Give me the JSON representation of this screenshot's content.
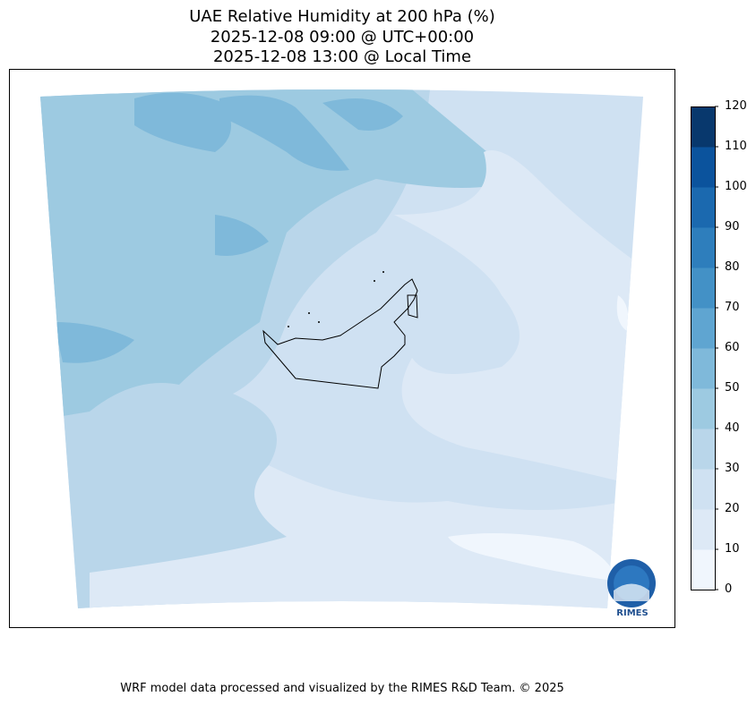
{
  "title_lines": [
    "UAE Relative Humidity at 200 hPa (%)",
    "2025-12-08 09:00 @ UTC+00:00",
    "2025-12-08 13:00 @ Local Time"
  ],
  "chart_data": {
    "type": "contour map",
    "variable": "Relative Humidity at 200 hPa (%)",
    "region": "UAE",
    "colorbar": {
      "levels": [
        0,
        10,
        20,
        30,
        40,
        50,
        60,
        70,
        80,
        90,
        100,
        110,
        120
      ],
      "tick_labels": [
        "0",
        "10",
        "20",
        "30",
        "40",
        "50",
        "60",
        "70",
        "80",
        "90",
        "100",
        "110",
        "120"
      ],
      "colors": [
        "#f0f6fd",
        "#dde9f6",
        "#cfe1f2",
        "#b9d6ea",
        "#9dcae1",
        "#7fb9da",
        "#5fa5d1",
        "#4391c6",
        "#2e7ebc",
        "#1b69af",
        "#0b539d",
        "#08386d"
      ]
    },
    "observed_range_percent": [
      0,
      60
    ]
  },
  "logo": {
    "text": "RIMES",
    "ring_text": "Regional Integrated Multi-Hazard Early Warning System"
  },
  "footer": "WRF model data processed and visualized by the RIMES R&D Team. © 2025"
}
